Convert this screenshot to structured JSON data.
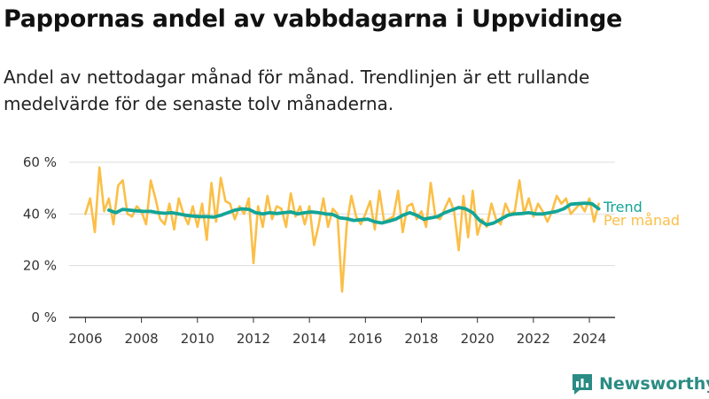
{
  "header": {
    "title": "Pappornas andel av vabbdagarna i Uppvidinge",
    "subtitle": "Andel av nettodagar månad för månad. Trendlinjen är ett rullande medelvärde för de senaste tolv månaderna."
  },
  "brand": {
    "name": "Newsworthy",
    "icon": "newsworthy-chart-icon"
  },
  "colors": {
    "monthly": "#fbbf47",
    "trend": "#13a597",
    "grid": "#dddddd",
    "axis": "#333333"
  },
  "chart_data": {
    "type": "line",
    "title": "Pappornas andel av vabbdagarna i Uppvidinge",
    "xlabel": "",
    "ylabel": "",
    "x_ticks": [
      "2006",
      "2008",
      "2010",
      "2012",
      "2014",
      "2016",
      "2018",
      "2020",
      "2022",
      "2024"
    ],
    "y_ticks": [
      "0 %",
      "20 %",
      "40 %",
      "60 %"
    ],
    "ylim": [
      0,
      60
    ],
    "xlim": [
      "2005-06",
      "2024-12"
    ],
    "grid": true,
    "series": [
      {
        "name": "Per månad",
        "color": "#fbbf47",
        "x": [
          "2006-01",
          "2006-03",
          "2006-05",
          "2006-07",
          "2006-09",
          "2006-11",
          "2007-01",
          "2007-03",
          "2007-05",
          "2007-07",
          "2007-09",
          "2007-11",
          "2008-01",
          "2008-03",
          "2008-05",
          "2008-07",
          "2008-09",
          "2008-11",
          "2009-01",
          "2009-03",
          "2009-05",
          "2009-07",
          "2009-09",
          "2009-11",
          "2010-01",
          "2010-03",
          "2010-05",
          "2010-07",
          "2010-09",
          "2010-11",
          "2011-01",
          "2011-03",
          "2011-05",
          "2011-07",
          "2011-09",
          "2011-11",
          "2012-01",
          "2012-03",
          "2012-05",
          "2012-07",
          "2012-09",
          "2012-11",
          "2013-01",
          "2013-03",
          "2013-05",
          "2013-07",
          "2013-09",
          "2013-11",
          "2014-01",
          "2014-03",
          "2014-05",
          "2014-07",
          "2014-09",
          "2014-11",
          "2015-01",
          "2015-03",
          "2015-05",
          "2015-07",
          "2015-09",
          "2015-11",
          "2016-01",
          "2016-03",
          "2016-05",
          "2016-07",
          "2016-09",
          "2016-11",
          "2017-01",
          "2017-03",
          "2017-05",
          "2017-07",
          "2017-09",
          "2017-11",
          "2018-01",
          "2018-03",
          "2018-05",
          "2018-07",
          "2018-09",
          "2018-11",
          "2019-01",
          "2019-03",
          "2019-05",
          "2019-07",
          "2019-09",
          "2019-11",
          "2020-01",
          "2020-03",
          "2020-05",
          "2020-07",
          "2020-09",
          "2020-11",
          "2021-01",
          "2021-03",
          "2021-05",
          "2021-07",
          "2021-09",
          "2021-11",
          "2022-01",
          "2022-03",
          "2022-05",
          "2022-07",
          "2022-09",
          "2022-11",
          "2023-01",
          "2023-03",
          "2023-05",
          "2023-07",
          "2023-09",
          "2023-11",
          "2024-01",
          "2024-03",
          "2024-05"
        ],
        "values": [
          40,
          46,
          33,
          58,
          41,
          46,
          36,
          51,
          53,
          40,
          39,
          43,
          41,
          36,
          53,
          46,
          38,
          36,
          44,
          34,
          46,
          40,
          36,
          43,
          35,
          44,
          30,
          52,
          37,
          54,
          45,
          44,
          38,
          43,
          40,
          46,
          21,
          43,
          35,
          47,
          38,
          43,
          42,
          35,
          48,
          39,
          43,
          36,
          43,
          28,
          36,
          46,
          35,
          42,
          40,
          10,
          36,
          47,
          39,
          36,
          40,
          45,
          34,
          49,
          37,
          38,
          39,
          49,
          33,
          43,
          44,
          38,
          41,
          35,
          52,
          39,
          38,
          42,
          46,
          41,
          26,
          47,
          31,
          49,
          32,
          38,
          35,
          44,
          38,
          36,
          44,
          40,
          41,
          53,
          40,
          46,
          39,
          44,
          41,
          37,
          41,
          47,
          44,
          46,
          40,
          42,
          44,
          41,
          46,
          37,
          44
        ],
        "label": "Per månad"
      },
      {
        "name": "Trend",
        "color": "#13a597",
        "x": [
          "2006-11",
          "2007-02",
          "2007-05",
          "2007-08",
          "2007-11",
          "2008-02",
          "2008-05",
          "2008-08",
          "2008-11",
          "2009-02",
          "2009-05",
          "2009-08",
          "2009-11",
          "2010-02",
          "2010-05",
          "2010-08",
          "2010-11",
          "2011-02",
          "2011-05",
          "2011-08",
          "2011-11",
          "2012-02",
          "2012-05",
          "2012-08",
          "2012-11",
          "2013-02",
          "2013-05",
          "2013-08",
          "2013-11",
          "2014-02",
          "2014-05",
          "2014-08",
          "2014-11",
          "2015-02",
          "2015-05",
          "2015-08",
          "2015-11",
          "2016-02",
          "2016-05",
          "2016-08",
          "2016-11",
          "2017-02",
          "2017-05",
          "2017-08",
          "2017-11",
          "2018-02",
          "2018-05",
          "2018-08",
          "2018-11",
          "2019-02",
          "2019-05",
          "2019-08",
          "2019-11",
          "2020-02",
          "2020-05",
          "2020-08",
          "2020-11",
          "2021-02",
          "2021-05",
          "2021-08",
          "2021-11",
          "2022-02",
          "2022-05",
          "2022-08",
          "2022-11",
          "2023-02",
          "2023-05",
          "2023-08",
          "2023-11",
          "2024-02",
          "2024-05"
        ],
        "values": [
          41.5,
          40.5,
          41.8,
          41.5,
          41.2,
          41,
          41,
          40.5,
          40.3,
          40.5,
          40,
          39.5,
          39.2,
          39,
          39,
          38.8,
          39.5,
          40.5,
          41.5,
          42,
          41.8,
          40.5,
          40,
          40.5,
          40.2,
          40.5,
          40.8,
          40,
          40.5,
          40.8,
          40.5,
          40,
          39.8,
          38.5,
          38.2,
          37.5,
          37.8,
          38,
          37,
          36.5,
          37.2,
          38,
          39.5,
          40.5,
          39.5,
          38,
          38.5,
          39,
          40.5,
          41.5,
          42.5,
          42,
          40.5,
          37.5,
          35.8,
          36.5,
          38,
          39.5,
          40,
          40.2,
          40.5,
          40,
          40,
          40.5,
          41,
          42,
          43.8,
          44,
          44.2,
          44,
          42
        ]
      }
    ]
  }
}
